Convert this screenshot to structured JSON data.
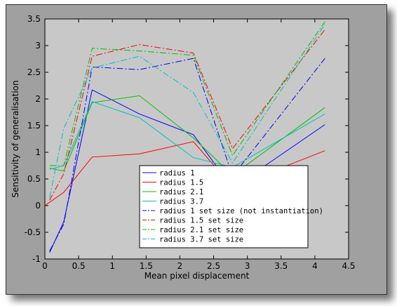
{
  "chart_data": {
    "type": "line",
    "title": "",
    "xlabel": "Mean pixel displacement",
    "ylabel": "Sensitivity of generalisation",
    "xlim": [
      0,
      4.5
    ],
    "ylim": [
      -1,
      3.5
    ],
    "xticks": [
      "0",
      "0.5",
      "1",
      "1.5",
      "2",
      "2.5",
      "3",
      "3.5",
      "4",
      "4.5"
    ],
    "yticks": [
      "-1",
      "-0.5",
      "0",
      "0.5",
      "1",
      "1.5",
      "2",
      "2.5",
      "3",
      "3.5"
    ],
    "grid": false,
    "legend_position": "center",
    "series": [
      {
        "name": "radius 1",
        "color": "#0000ff",
        "dash": "solid",
        "x": [
          0.07,
          0.28,
          0.7,
          1.4,
          2.2,
          2.78,
          4.15
        ],
        "y": [
          -0.88,
          -0.3,
          2.17,
          1.72,
          1.33,
          0.33,
          1.52
        ]
      },
      {
        "name": "radius 1.5",
        "color": "#ff0000",
        "dash": "solid",
        "x": [
          0.0,
          0.28,
          0.7,
          1.4,
          2.2,
          2.78,
          4.15
        ],
        "y": [
          0.0,
          0.25,
          0.91,
          0.97,
          1.2,
          0.35,
          1.03
        ]
      },
      {
        "name": "radius 2.1",
        "color": "#00c000",
        "dash": "solid",
        "x": [
          0.07,
          0.28,
          0.7,
          1.4,
          2.2,
          2.78,
          4.15
        ],
        "y": [
          0.7,
          0.65,
          1.93,
          2.06,
          1.27,
          0.57,
          1.84
        ]
      },
      {
        "name": "radius 3.7",
        "color": "#00c0c0",
        "dash": "solid",
        "x": [
          0.07,
          0.28,
          0.7,
          1.4,
          2.2,
          2.78,
          4.15
        ],
        "y": [
          0.68,
          0.75,
          1.95,
          1.65,
          0.9,
          0.72,
          1.72
        ]
      },
      {
        "name": "radius 1 set size (not instantiation)",
        "color": "#0000ff",
        "dash": "dashdot",
        "x": [
          0.07,
          0.28,
          0.7,
          1.4,
          2.2,
          2.78,
          4.15
        ],
        "y": [
          -0.85,
          -0.35,
          2.6,
          2.55,
          2.76,
          0.55,
          2.76
        ]
      },
      {
        "name": "radius 1.5 set size",
        "color": "#ff0000",
        "dash": "dashdot",
        "x": [
          0.07,
          0.28,
          0.7,
          1.4,
          2.2,
          2.78,
          4.15
        ],
        "y": [
          0.1,
          0.6,
          2.8,
          3.02,
          2.86,
          1.07,
          3.3
        ]
      },
      {
        "name": "radius 2.1 set size",
        "color": "#00c000",
        "dash": "dashdot",
        "x": [
          0.07,
          0.28,
          0.7,
          1.4,
          2.2,
          2.78,
          4.15
        ],
        "y": [
          0.75,
          0.75,
          2.95,
          2.9,
          2.82,
          0.94,
          3.45
        ]
      },
      {
        "name": "radius 3.7 set size",
        "color": "#00c0c0",
        "dash": "dashdot",
        "x": [
          0.07,
          0.28,
          0.7,
          1.4,
          2.2,
          2.78,
          4.15
        ],
        "y": [
          0.15,
          1.45,
          2.58,
          2.8,
          2.12,
          0.8,
          3.4
        ]
      }
    ]
  },
  "colors": {
    "plot_background": "#c8c8c8",
    "window_background": "#a0a0a0",
    "legend_background": "#ffffff"
  }
}
